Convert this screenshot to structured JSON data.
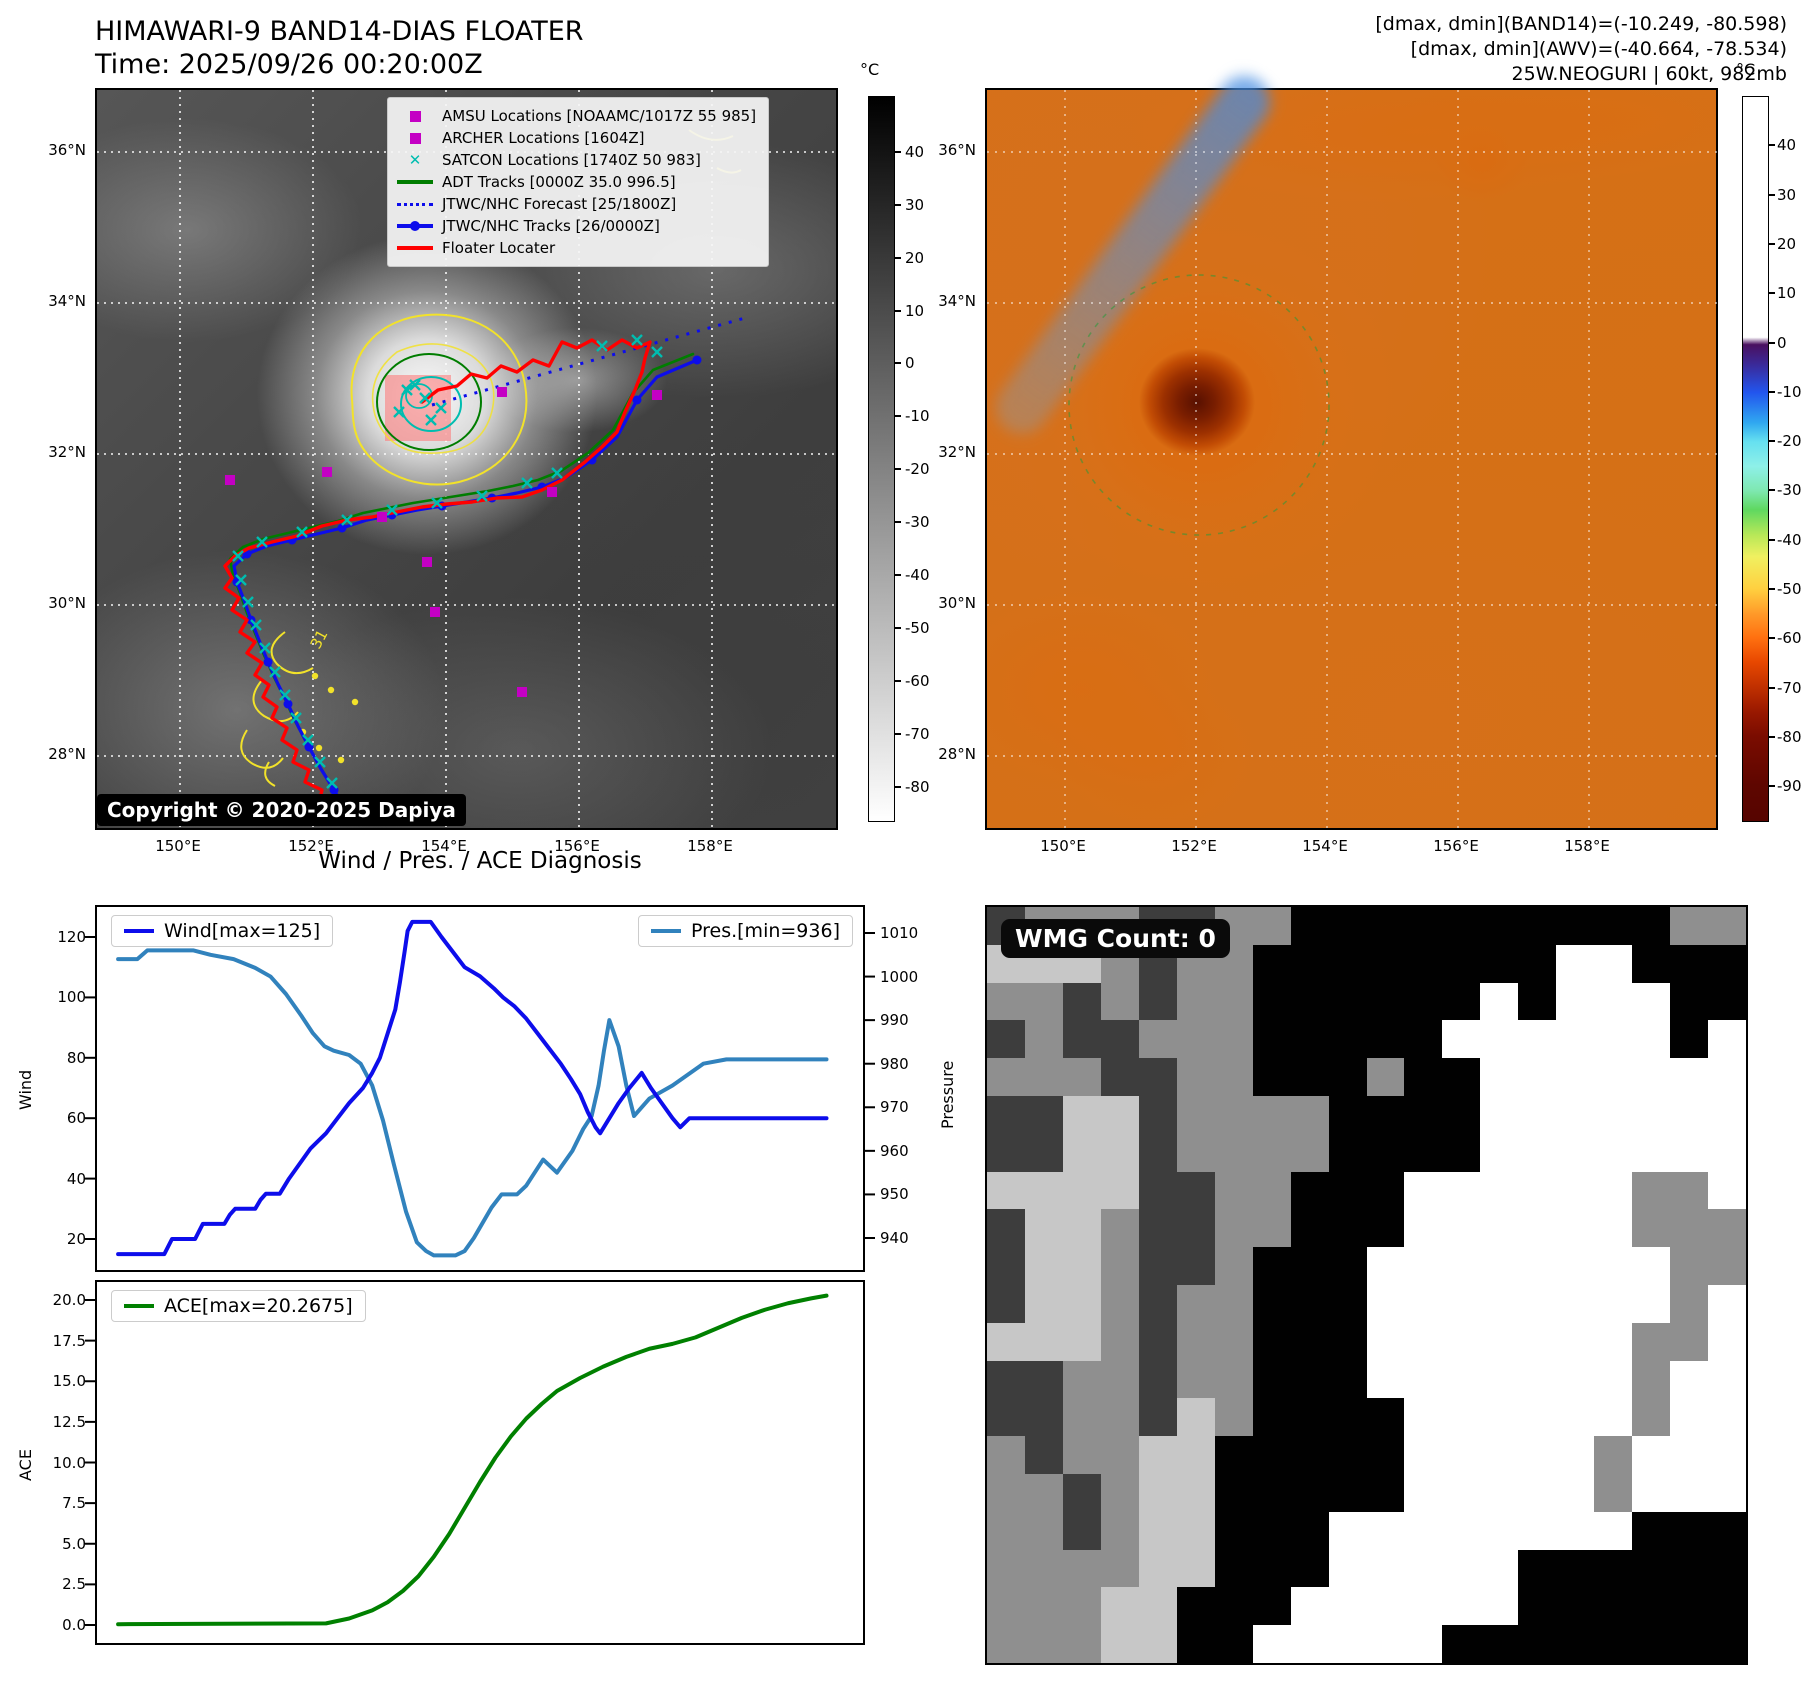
{
  "header": {
    "title_line1": "HIMAWARI-9 BAND14-DIAS FLOATER",
    "title_line2": "Time: 2025/09/26 00:20:00Z",
    "info_line1": "[dmax, dmin](BAND14)=(-10.249, -80.598)",
    "info_line2": "[dmax, dmin](AWV)=(-40.664, -78.534)",
    "info_line3": "25W.NEOGURI | 60kt, 982mb"
  },
  "band14_map": {
    "copyright": "Copyright © 2020-2025 Dapiya",
    "lat_ticks": [
      "36°N",
      "34°N",
      "32°N",
      "30°N",
      "28°N"
    ],
    "lon_ticks": [
      "150°E",
      "152°E",
      "154°E",
      "156°E",
      "158°E"
    ],
    "contour_label": "31",
    "colorbar": {
      "unit": "°C",
      "ticks": [
        "40",
        "30",
        "20",
        "10",
        "0",
        "-10",
        "-20",
        "-30",
        "-40",
        "-50",
        "-60",
        "-70",
        "-80"
      ]
    },
    "legend": [
      {
        "label": "AMSU Locations [NOAAMC/1017Z 55 985]",
        "marker": "square",
        "color": "#c400c4"
      },
      {
        "label": "ARCHER Locations [1604Z]",
        "marker": "square",
        "color": "#c400c4"
      },
      {
        "label": "SATCON Locations [1740Z 50 983]",
        "marker": "x",
        "color": "#00bdb0"
      },
      {
        "label": "ADT Tracks [0000Z 35.0 996.5]",
        "marker": "line",
        "color": "#007d00"
      },
      {
        "label": "JTWC/NHC Forecast [25/1800Z]",
        "marker": "dotted",
        "color": "#0d0deb"
      },
      {
        "label": "JTWC/NHC Tracks [26/0000Z]",
        "marker": "linedot",
        "color": "#0d0deb"
      },
      {
        "label": "Floater Locater",
        "marker": "line",
        "color": "#ff0000"
      }
    ]
  },
  "awv_map": {
    "lat_ticks": [
      "36°N",
      "34°N",
      "32°N",
      "30°N",
      "28°N"
    ],
    "lon_ticks": [
      "150°E",
      "152°E",
      "154°E",
      "156°E",
      "158°E"
    ],
    "colorbar": {
      "unit": "°C",
      "ticks": [
        "40",
        "30",
        "20",
        "10",
        "0",
        "-10",
        "-20",
        "-30",
        "-40",
        "-50",
        "-60",
        "-70",
        "-80",
        "-90"
      ]
    }
  },
  "diagnosis": {
    "title": "Wind / Pres. / ACE Diagnosis",
    "wind_axis_label": "Wind",
    "pressure_axis_label": "Pressure",
    "ace_axis_label": "ACE",
    "wind_legend": "Wind[max=125]",
    "pres_legend": "Pres.[min=936]",
    "ace_legend": "ACE[max=20.2675]",
    "wind_ticks": [
      "120",
      "100",
      "80",
      "60",
      "40",
      "20"
    ],
    "pressure_ticks": [
      "1010",
      "1000",
      "990",
      "980",
      "970",
      "960",
      "950",
      "940"
    ],
    "ace_ticks": [
      "20.0",
      "17.5",
      "15.0",
      "12.5",
      "10.0",
      "7.5",
      "5.0",
      "2.5",
      "0.0"
    ]
  },
  "chart_data": [
    {
      "type": "line",
      "title": "Wind / Pres. / ACE Diagnosis",
      "panel": "top",
      "x_note": "x is time (no tick labels shown in figure); positions normalized 0-1",
      "grid": false,
      "series": [
        {
          "name": "Wind[max=125]",
          "color": "#0d0deb",
          "axis": "left",
          "ylabel": "Wind",
          "ylim": [
            9,
            130
          ],
          "points": [
            [
              0.03,
              15
            ],
            [
              0.09,
              15
            ],
            [
              0.1,
              20
            ],
            [
              0.13,
              20
            ],
            [
              0.14,
              25
            ],
            [
              0.168,
              25
            ],
            [
              0.175,
              28
            ],
            [
              0.182,
              30
            ],
            [
              0.208,
              30
            ],
            [
              0.215,
              33
            ],
            [
              0.222,
              35
            ],
            [
              0.24,
              35
            ],
            [
              0.252,
              40
            ],
            [
              0.266,
              45
            ],
            [
              0.28,
              50
            ],
            [
              0.3,
              55
            ],
            [
              0.315,
              60
            ],
            [
              0.33,
              65
            ],
            [
              0.348,
              70
            ],
            [
              0.36,
              75
            ],
            [
              0.37,
              80
            ],
            [
              0.38,
              88
            ],
            [
              0.39,
              96
            ],
            [
              0.396,
              105
            ],
            [
              0.402,
              115
            ],
            [
              0.406,
              122
            ],
            [
              0.412,
              125
            ],
            [
              0.436,
              125
            ],
            [
              0.45,
              120
            ],
            [
              0.468,
              114
            ],
            [
              0.48,
              110
            ],
            [
              0.5,
              107
            ],
            [
              0.518,
              103
            ],
            [
              0.53,
              100
            ],
            [
              0.545,
              97
            ],
            [
              0.56,
              93
            ],
            [
              0.575,
              88
            ],
            [
              0.59,
              83
            ],
            [
              0.605,
              78
            ],
            [
              0.618,
              73
            ],
            [
              0.63,
              68
            ],
            [
              0.64,
              62
            ],
            [
              0.65,
              57
            ],
            [
              0.656,
              55
            ],
            [
              0.668,
              60
            ],
            [
              0.68,
              65
            ],
            [
              0.694,
              70
            ],
            [
              0.71,
              75
            ],
            [
              0.722,
              70
            ],
            [
              0.736,
              65
            ],
            [
              0.75,
              60
            ],
            [
              0.76,
              57
            ],
            [
              0.772,
              60
            ],
            [
              0.95,
              60
            ]
          ]
        },
        {
          "name": "Pres.[min=936]",
          "color": "#3182bd",
          "axis": "right",
          "ylabel": "Pressure",
          "ylim": [
            932,
            1016
          ],
          "points": [
            [
              0.03,
              1004
            ],
            [
              0.055,
              1004
            ],
            [
              0.068,
              1006
            ],
            [
              0.128,
              1006
            ],
            [
              0.15,
              1005
            ],
            [
              0.18,
              1004
            ],
            [
              0.208,
              1002
            ],
            [
              0.228,
              1000
            ],
            [
              0.248,
              996
            ],
            [
              0.268,
              991
            ],
            [
              0.283,
              987
            ],
            [
              0.298,
              984
            ],
            [
              0.31,
              983
            ],
            [
              0.33,
              982
            ],
            [
              0.345,
              980
            ],
            [
              0.36,
              975
            ],
            [
              0.374,
              967
            ],
            [
              0.388,
              957
            ],
            [
              0.404,
              946
            ],
            [
              0.418,
              939
            ],
            [
              0.43,
              937
            ],
            [
              0.44,
              936
            ],
            [
              0.468,
              936
            ],
            [
              0.48,
              937
            ],
            [
              0.492,
              940
            ],
            [
              0.515,
              947
            ],
            [
              0.528,
              950
            ],
            [
              0.548,
              950
            ],
            [
              0.56,
              952
            ],
            [
              0.582,
              958
            ],
            [
              0.6,
              955
            ],
            [
              0.62,
              960
            ],
            [
              0.634,
              965
            ],
            [
              0.645,
              968
            ],
            [
              0.654,
              975
            ],
            [
              0.661,
              983
            ],
            [
              0.668,
              990
            ],
            [
              0.68,
              984
            ],
            [
              0.69,
              975
            ],
            [
              0.7,
              968
            ],
            [
              0.72,
              972
            ],
            [
              0.75,
              975
            ],
            [
              0.79,
              980
            ],
            [
              0.82,
              981
            ],
            [
              0.95,
              981
            ]
          ]
        }
      ]
    },
    {
      "type": "line",
      "panel": "bottom",
      "x_note": "x is time (no tick labels shown in figure); positions normalized 0-1",
      "grid": false,
      "series": [
        {
          "name": "ACE[max=20.2675]",
          "color": "#008000",
          "axis": "left",
          "ylabel": "ACE",
          "ylim": [
            -1.2,
            21.2
          ],
          "points": [
            [
              0.03,
              0.05
            ],
            [
              0.3,
              0.1
            ],
            [
              0.33,
              0.4
            ],
            [
              0.36,
              0.9
            ],
            [
              0.38,
              1.4
            ],
            [
              0.4,
              2.1
            ],
            [
              0.42,
              3.0
            ],
            [
              0.44,
              4.2
            ],
            [
              0.46,
              5.6
            ],
            [
              0.48,
              7.2
            ],
            [
              0.5,
              8.8
            ],
            [
              0.52,
              10.3
            ],
            [
              0.54,
              11.6
            ],
            [
              0.56,
              12.7
            ],
            [
              0.58,
              13.6
            ],
            [
              0.6,
              14.4
            ],
            [
              0.63,
              15.2
            ],
            [
              0.66,
              15.9
            ],
            [
              0.69,
              16.5
            ],
            [
              0.72,
              17.0
            ],
            [
              0.75,
              17.3
            ],
            [
              0.78,
              17.7
            ],
            [
              0.81,
              18.3
            ],
            [
              0.84,
              18.9
            ],
            [
              0.87,
              19.4
            ],
            [
              0.9,
              19.8
            ],
            [
              0.93,
              20.1
            ],
            [
              0.95,
              20.27
            ]
          ]
        }
      ]
    }
  ],
  "wmg": {
    "badge": "WMG Count: 0",
    "palette": {
      "K": "#010101",
      "D": "#3d3d3d",
      "M": "#8f8f8f",
      "L": "#c7c7c7",
      "W": "#ffffff"
    },
    "grid": [
      "DMMMDDMMKKKKKKKKKKMM",
      "LLLMDMMKKKKKKKKWWKKK",
      "MMDMDMMKKKKKKWKWWWKK",
      "DMDDMMMKKKKKWWWWWWKW",
      "MMMDDMMKKKMKKWWWWWWW",
      "DDLLDMMMMKKKKWWWWWWW",
      "DDLLDMMMMKKKKWWWWWWW",
      "LLLLDDMMKKKWWWWWWMMW",
      "DLLMDDMMKKKWWWWWWMMM",
      "DLLMDDMKKKWWWWWWWWMM",
      "DLLMDMMKKKWWWWWWWWMW",
      "LLLMDMMKKKWWWWWWWMMW",
      "DDMMDMMKKKWWWWWWWMWW",
      "DDMMDLMKKKKWWWWWWMWW",
      "MDMMLLKKKKKWWWWWMWWW",
      "MMDMLLKKKKKWWWWWMWWW",
      "MMDMLLKKKWWWWWWWWKKK",
      "MMMMLLKKKWWWWWKKKKKK",
      "MMMLLKKKWWWWWWKKKKKK",
      "MMMLLKKWWWWWKKKKKKKK"
    ]
  }
}
